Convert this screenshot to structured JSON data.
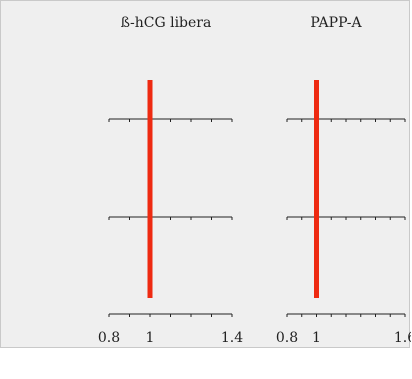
{
  "chart_data": [
    {
      "type": "line",
      "title": "ß-hCG libera",
      "xlim": [
        0.8,
        1.4
      ],
      "tick_labels": [
        {
          "value": 0.8,
          "label": "0.8"
        },
        {
          "value": 1,
          "label": "1"
        },
        {
          "value": 1.4,
          "label": "1.4"
        }
      ],
      "minor_ticks": [
        0.9,
        1.1,
        1.2,
        1.3
      ],
      "rows": 3,
      "reference_line": {
        "x": 1,
        "color": "#ee2a11"
      },
      "grid": false
    },
    {
      "type": "line",
      "title": "PAPP-A",
      "xlim": [
        0.8,
        1.6
      ],
      "tick_labels": [
        {
          "value": 0.8,
          "label": "0.8"
        },
        {
          "value": 1,
          "label": "1"
        },
        {
          "value": 1.6,
          "label": "1.6"
        }
      ],
      "minor_ticks": [
        0.9,
        1.1,
        1.2,
        1.3,
        1.4,
        1.5
      ],
      "rows": 3,
      "reference_line": {
        "x": 1,
        "color": "#ee2a11"
      },
      "grid": false
    }
  ]
}
